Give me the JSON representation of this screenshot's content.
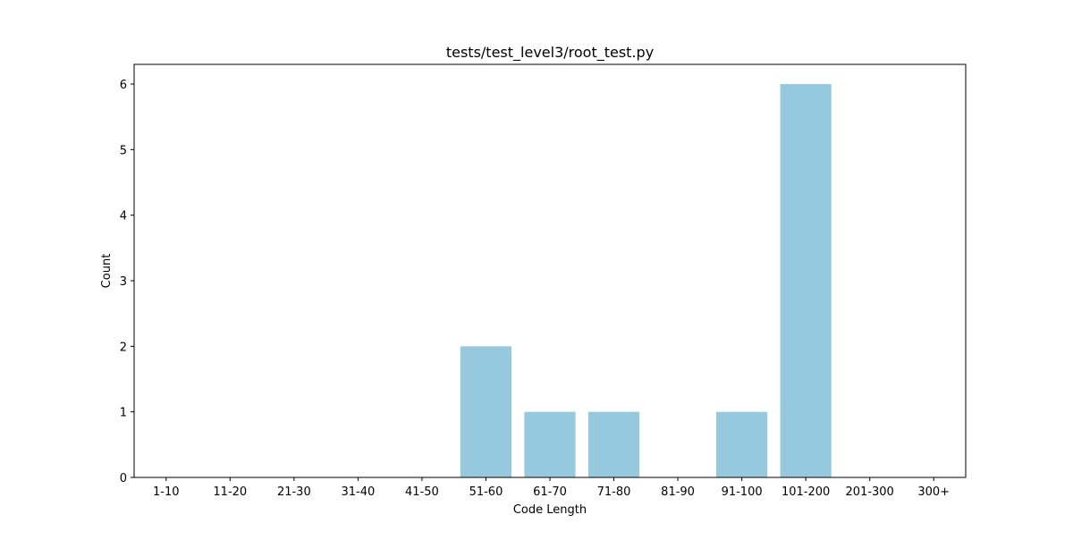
{
  "chart_data": {
    "type": "bar",
    "title": "tests/test_level3/root_test.py",
    "xlabel": "Code Length",
    "ylabel": "Count",
    "categories": [
      "1-10",
      "11-20",
      "21-30",
      "31-40",
      "41-50",
      "51-60",
      "61-70",
      "71-80",
      "81-90",
      "91-100",
      "101-200",
      "201-300",
      "300+"
    ],
    "values": [
      0,
      0,
      0,
      0,
      0,
      2,
      1,
      1,
      0,
      1,
      6,
      0,
      0
    ],
    "ylim": [
      0,
      6.3
    ],
    "yticks": [
      "0",
      "1",
      "2",
      "3",
      "4",
      "5",
      "6"
    ],
    "grid": false,
    "bar_color": "#96c9dd"
  }
}
